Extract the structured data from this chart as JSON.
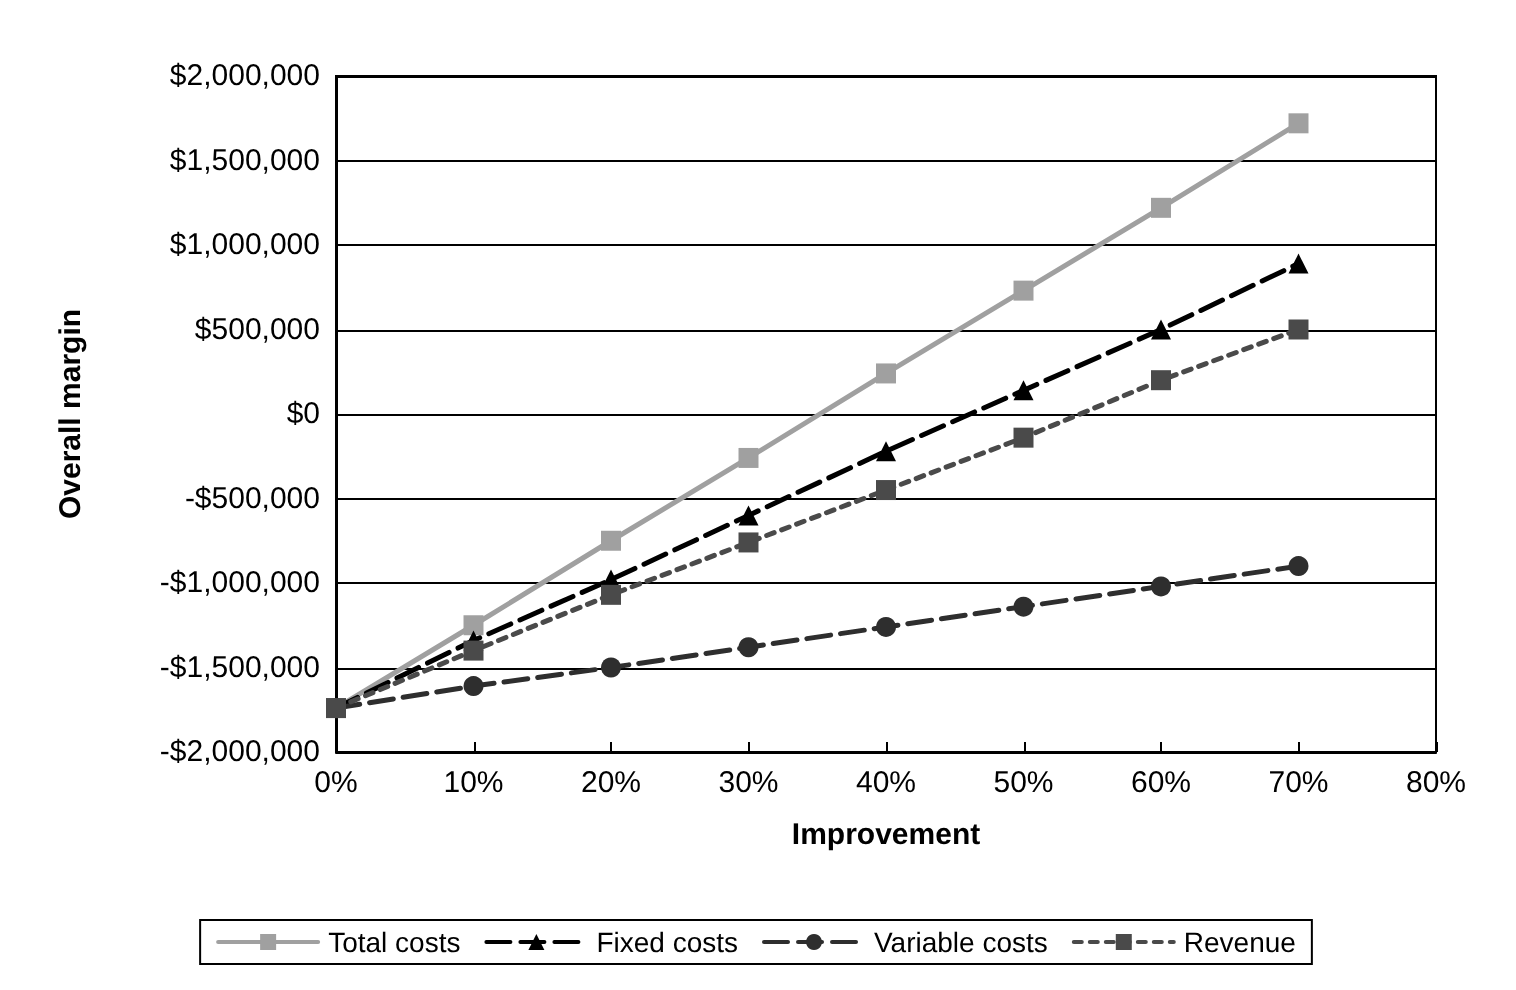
{
  "chart_data": {
    "type": "line",
    "xlabel": "Improvement",
    "ylabel": "Overall margin",
    "x": [
      0,
      10,
      20,
      30,
      40,
      50,
      60,
      70
    ],
    "series": [
      {
        "name": "Total costs",
        "color": "#a0a0a0",
        "marker": "square",
        "line_style": "solid",
        "values": [
          -1740000,
          -1250000,
          -750000,
          -260000,
          240000,
          730000,
          1220000,
          1720000
        ]
      },
      {
        "name": "Fixed costs",
        "color": "#000000",
        "marker": "triangle",
        "line_style": "dashed",
        "values": [
          -1740000,
          -1340000,
          -980000,
          -600000,
          -220000,
          140000,
          500000,
          890000
        ]
      },
      {
        "name": "Variable costs",
        "color": "#2e2e2e",
        "marker": "circle",
        "line_style": "dashed",
        "values": [
          -1740000,
          -1610000,
          -1500000,
          -1380000,
          -1260000,
          -1140000,
          -1020000,
          -900000
        ]
      },
      {
        "name": "Revenue",
        "color": "#4a4a4a",
        "marker": "square",
        "line_style": "dotted",
        "values": [
          -1740000,
          -1400000,
          -1070000,
          -760000,
          -450000,
          -140000,
          200000,
          500000
        ]
      }
    ],
    "xlim": [
      0,
      80
    ],
    "xticks": [
      {
        "value": 0,
        "label": "0%"
      },
      {
        "value": 10,
        "label": "10%"
      },
      {
        "value": 20,
        "label": "20%"
      },
      {
        "value": 30,
        "label": "30%"
      },
      {
        "value": 40,
        "label": "40%"
      },
      {
        "value": 50,
        "label": "50%"
      },
      {
        "value": 60,
        "label": "60%"
      },
      {
        "value": 70,
        "label": "70%"
      },
      {
        "value": 80,
        "label": "80%"
      }
    ],
    "ylim": [
      -2000000,
      2000000
    ],
    "yticks": [
      {
        "value": -2000000,
        "label": "-$2,000,000"
      },
      {
        "value": -1500000,
        "label": "-$1,500,000"
      },
      {
        "value": -1000000,
        "label": "-$1,000,000"
      },
      {
        "value": -500000,
        "label": "-$500,000"
      },
      {
        "value": 0,
        "label": "$0"
      },
      {
        "value": 500000,
        "label": "$500,000"
      },
      {
        "value": 1000000,
        "label": "$1,000,000"
      },
      {
        "value": 1500000,
        "label": "$1,500,000"
      },
      {
        "value": 2000000,
        "label": "$2,000,000"
      }
    ],
    "grid": "y",
    "legend": "bottom"
  }
}
